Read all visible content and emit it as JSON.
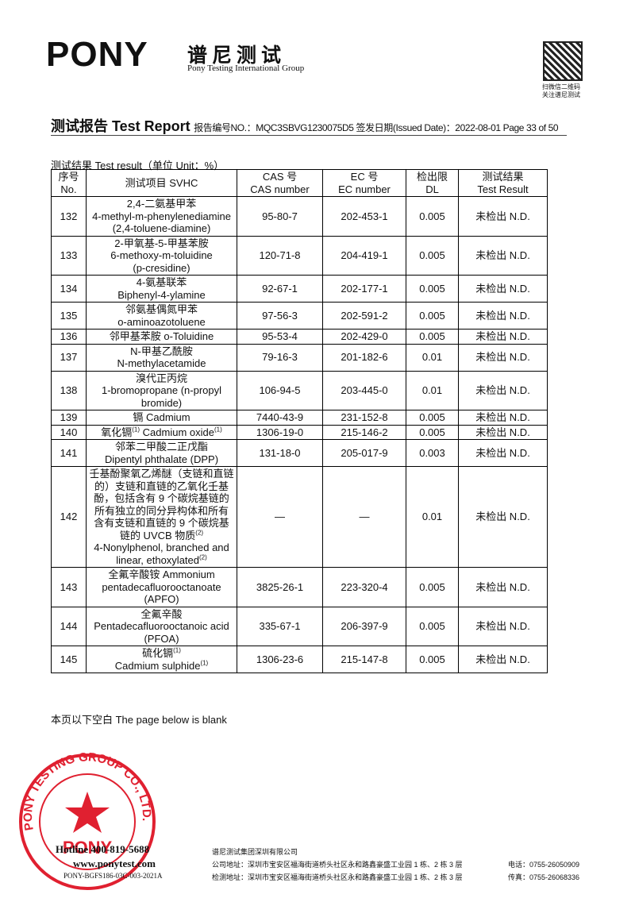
{
  "header": {
    "logo": "PONY",
    "name_cn": "谱尼测试",
    "name_en": "Pony Testing International Group",
    "qr_caption": [
      "扫微信二维码",
      "关注谱尼测试"
    ]
  },
  "report_line": {
    "title": "测试报告 Test Report",
    "info": "报告编号NO.：MQC3SBVG1230075D5 签发日期(Issued Date)：2022-08-01 Page 33 of 50"
  },
  "section": "测试结果  Test result（单位 Unit：%）",
  "table": {
    "headers": [
      [
        "序号",
        "No."
      ],
      [
        "测试项目 SVHC"
      ],
      [
        "CAS 号",
        "CAS number"
      ],
      [
        "EC 号",
        "EC number"
      ],
      [
        "检出限",
        "DL"
      ],
      [
        "测试结果",
        "Test Result"
      ]
    ],
    "rows": [
      {
        "no": "132",
        "name": [
          [
            "2,4-二氨基甲苯"
          ],
          [
            "4-methyl-m-phenylenediamine"
          ],
          [
            "(2,4-toluene-diamine)"
          ]
        ],
        "cas": "95-80-7",
        "ec": "202-453-1",
        "dl": "0.005",
        "result": "未检出 N.D."
      },
      {
        "no": "133",
        "name": [
          [
            "2-甲氧基-5-甲基苯胺"
          ],
          [
            "6-methoxy-m-toluidine"
          ],
          [
            "(p-cresidine)"
          ]
        ],
        "cas": "120-71-8",
        "ec": "204-419-1",
        "dl": "0.005",
        "result": "未检出 N.D."
      },
      {
        "no": "134",
        "name": [
          [
            "4-氨基联苯"
          ],
          [
            "Biphenyl-4-ylamine"
          ]
        ],
        "cas": "92-67-1",
        "ec": "202-177-1",
        "dl": "0.005",
        "result": "未检出 N.D."
      },
      {
        "no": "135",
        "name": [
          [
            "邻氨基偶氮甲苯"
          ],
          [
            "o-aminoazotoluene"
          ]
        ],
        "cas": "97-56-3",
        "ec": "202-591-2",
        "dl": "0.005",
        "result": "未检出 N.D."
      },
      {
        "no": "136",
        "name": [
          [
            "邻甲基苯胺 o-Toluidine"
          ]
        ],
        "cas": "95-53-4",
        "ec": "202-429-0",
        "dl": "0.005",
        "result": "未检出 N.D."
      },
      {
        "no": "137",
        "name": [
          [
            "N-甲基乙酰胺"
          ],
          [
            "N-methylacetamide"
          ]
        ],
        "cas": "79-16-3",
        "ec": "201-182-6",
        "dl": "0.01",
        "result": "未检出 N.D."
      },
      {
        "no": "138",
        "name": [
          [
            "溴代正丙烷"
          ],
          [
            "1-bromopropane (n-propyl"
          ],
          [
            "bromide)"
          ]
        ],
        "cas": "106-94-5",
        "ec": "203-445-0",
        "dl": "0.01",
        "result": "未检出 N.D."
      },
      {
        "no": "139",
        "name": [
          [
            "镉 Cadmium"
          ]
        ],
        "cas": "7440-43-9",
        "ec": "231-152-8",
        "dl": "0.005",
        "result": "未检出 N.D."
      },
      {
        "no": "140",
        "name": [
          [
            "氧化镉",
            {
              "sup": "(1)"
            },
            " Cadmium oxide",
            {
              "sup": "(1)"
            }
          ]
        ],
        "cas": "1306-19-0",
        "ec": "215-146-2",
        "dl": "0.005",
        "result": "未检出 N.D."
      },
      {
        "no": "141",
        "name": [
          [
            "邻苯二甲酸二正戊酯"
          ],
          [
            "Dipentyl phthalate (DPP)"
          ]
        ],
        "cas": "131-18-0",
        "ec": "205-017-9",
        "dl": "0.003",
        "result": "未检出 N.D."
      },
      {
        "no": "142",
        "name": [
          [
            "壬基酚聚氧乙烯醚（支链和直链"
          ],
          [
            "的）支链和直链的乙氧化壬基"
          ],
          [
            "酚，包括含有 9 个碳烷基链的"
          ],
          [
            "所有独立的同分异构体和所有"
          ],
          [
            "含有支链和直链的 9 个碳烷基"
          ],
          [
            "链的 UVCB 物质",
            {
              "sup": "(2)"
            }
          ],
          [
            "4-Nonylphenol, branched and"
          ],
          [
            "linear, ethoxylated",
            {
              "sup": "(2)"
            }
          ]
        ],
        "cas": "—",
        "ec": "—",
        "dl": "0.01",
        "result": "未检出 N.D."
      },
      {
        "no": "143",
        "name": [
          [
            "全氟辛酸铵 Ammonium"
          ],
          [
            "pentadecafluorooctanoate"
          ],
          [
            "(APFO)"
          ]
        ],
        "cas": "3825-26-1",
        "ec": "223-320-4",
        "dl": "0.005",
        "result": "未检出 N.D."
      },
      {
        "no": "144",
        "name": [
          [
            "全氟辛酸"
          ],
          [
            "Pentadecafluorooctanoic acid"
          ],
          [
            "(PFOA)"
          ]
        ],
        "cas": "335-67-1",
        "ec": "206-397-9",
        "dl": "0.005",
        "result": "未检出 N.D."
      },
      {
        "no": "145",
        "name": [
          [
            "硫化镉",
            {
              "sup": "(1)"
            }
          ],
          [
            "Cadmium sulphide",
            {
              "sup": "(1)"
            }
          ]
        ],
        "cas": "1306-23-6",
        "ec": "215-147-8",
        "dl": "0.005",
        "result": "未检出 N.D."
      }
    ]
  },
  "blank_note": "本页以下空白 The page below is blank",
  "stamp": {
    "ring": "PONY TESTING GROUP CO., LTD.",
    "center": "PONY"
  },
  "footer": {
    "hotline": "Hotline 400-819-5688",
    "website": "www.ponytest.com",
    "form_code": "PONY-BGFS186-03C-003-2021A",
    "company": "谱尼测试集团深圳有限公司",
    "company_address": "公司地址：深圳市宝安区福海街道桥头社区永和路鑫豪盛工业园 1 栋、2 栋 3 层",
    "tel": "电话：0755-26050909",
    "lab_address": "检测地址：深圳市宝安区福海街道桥头社区永和路鑫豪盛工业园 1 栋、2 栋 3 层",
    "fax": "传真：0755-26068336"
  }
}
